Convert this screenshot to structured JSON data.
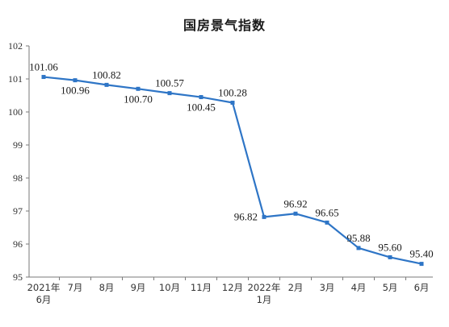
{
  "chart_data": {
    "type": "line",
    "title": "国房景气指数",
    "xlabel": "",
    "ylabel": "",
    "ylim": [
      95,
      102
    ],
    "y_ticks": [
      95,
      96,
      97,
      98,
      99,
      100,
      101,
      102
    ],
    "grid": false,
    "categories": [
      [
        "2021年",
        "6月"
      ],
      [
        "7月"
      ],
      [
        "8月"
      ],
      [
        "9月"
      ],
      [
        "10月"
      ],
      [
        "11月"
      ],
      [
        "12月"
      ],
      [
        "2022年",
        "1月"
      ],
      [
        "2月"
      ],
      [
        "3月"
      ],
      [
        "4月"
      ],
      [
        "5月"
      ],
      [
        "6月"
      ]
    ],
    "series": [
      {
        "color": "#2e75c6",
        "values": [
          101.06,
          100.96,
          100.82,
          100.7,
          100.57,
          100.45,
          100.28,
          96.82,
          96.92,
          96.65,
          95.88,
          95.6,
          95.4
        ],
        "labels": [
          "101.06",
          "100.96",
          "100.82",
          "100.70",
          "100.57",
          "100.45",
          "100.28",
          "96.82",
          "96.92",
          "96.65",
          "95.88",
          "95.60",
          "95.40"
        ],
        "label_positions": [
          "above",
          "below",
          "above",
          "below",
          "above",
          "below",
          "above",
          "left",
          "above",
          "above",
          "above",
          "above",
          "above"
        ]
      }
    ]
  }
}
